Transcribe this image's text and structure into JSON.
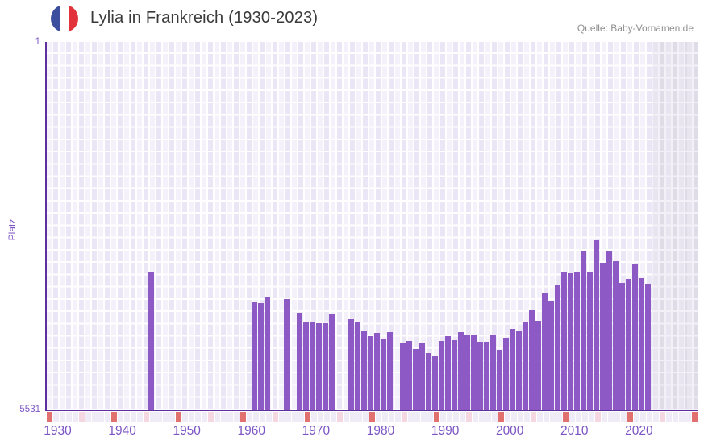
{
  "header": {
    "title": "Lylia in Frankreich (1930-2023)",
    "source": "Quelle: Baby-Vornamen.de",
    "flag_icon": "france-flag-icon"
  },
  "y_axis": {
    "label": "Platz",
    "tick_top": "1",
    "tick_bottom": "5531"
  },
  "x_axis": {
    "ticks": [
      "1930",
      "1940",
      "1950",
      "1960",
      "1970",
      "1980",
      "1990",
      "2000",
      "2010",
      "2020"
    ]
  },
  "chart_data": {
    "type": "bar",
    "title": "Lylia in Frankreich (1930-2023)",
    "xlabel": "",
    "ylabel": "Platz",
    "y_axis_inverted": true,
    "ylim": [
      1,
      5531
    ],
    "xlim": [
      1928,
      2029
    ],
    "legend": "none",
    "grid": true,
    "note": "Rang (Platz) pro Jahr; niedriger Rang = hoeherer Balken; Jahre ohne Balken ohne Platzierung; Bereich nach 2021 grau schattiert",
    "points": [
      {
        "year": 1944,
        "rank": 3450
      },
      {
        "year": 1960,
        "rank": 3900
      },
      {
        "year": 1961,
        "rank": 3920
      },
      {
        "year": 1962,
        "rank": 3825
      },
      {
        "year": 1965,
        "rank": 3860
      },
      {
        "year": 1967,
        "rank": 4065
      },
      {
        "year": 1968,
        "rank": 4200
      },
      {
        "year": 1969,
        "rank": 4210
      },
      {
        "year": 1970,
        "rank": 4225
      },
      {
        "year": 1971,
        "rank": 4225
      },
      {
        "year": 1972,
        "rank": 4080
      },
      {
        "year": 1975,
        "rank": 4165
      },
      {
        "year": 1976,
        "rank": 4210
      },
      {
        "year": 1977,
        "rank": 4330
      },
      {
        "year": 1978,
        "rank": 4420
      },
      {
        "year": 1979,
        "rank": 4370
      },
      {
        "year": 1980,
        "rank": 4455
      },
      {
        "year": 1981,
        "rank": 4355
      },
      {
        "year": 1983,
        "rank": 4515
      },
      {
        "year": 1984,
        "rank": 4490
      },
      {
        "year": 1985,
        "rank": 4610
      },
      {
        "year": 1986,
        "rank": 4515
      },
      {
        "year": 1987,
        "rank": 4670
      },
      {
        "year": 1988,
        "rank": 4710
      },
      {
        "year": 1989,
        "rank": 4490
      },
      {
        "year": 1990,
        "rank": 4420
      },
      {
        "year": 1991,
        "rank": 4480
      },
      {
        "year": 1992,
        "rank": 4355
      },
      {
        "year": 1993,
        "rank": 4405
      },
      {
        "year": 1994,
        "rank": 4405
      },
      {
        "year": 1995,
        "rank": 4505
      },
      {
        "year": 1996,
        "rank": 4505
      },
      {
        "year": 1997,
        "rank": 4405
      },
      {
        "year": 1998,
        "rank": 4625
      },
      {
        "year": 1999,
        "rank": 4440
      },
      {
        "year": 2000,
        "rank": 4310
      },
      {
        "year": 2001,
        "rank": 4345
      },
      {
        "year": 2002,
        "rank": 4200
      },
      {
        "year": 2003,
        "rank": 4030
      },
      {
        "year": 2004,
        "rank": 4190
      },
      {
        "year": 2005,
        "rank": 3765
      },
      {
        "year": 2006,
        "rank": 3885
      },
      {
        "year": 2007,
        "rank": 3645
      },
      {
        "year": 2008,
        "rank": 3450
      },
      {
        "year": 2009,
        "rank": 3475
      },
      {
        "year": 2010,
        "rank": 3460
      },
      {
        "year": 2011,
        "rank": 3135
      },
      {
        "year": 2012,
        "rank": 3450
      },
      {
        "year": 2013,
        "rank": 2980
      },
      {
        "year": 2014,
        "rank": 3315
      },
      {
        "year": 2015,
        "rank": 3135
      },
      {
        "year": 2016,
        "rank": 3290
      },
      {
        "year": 2017,
        "rank": 3620
      },
      {
        "year": 2018,
        "rank": 3560
      },
      {
        "year": 2019,
        "rank": 3340
      },
      {
        "year": 2020,
        "rank": 3545
      },
      {
        "year": 2021,
        "rank": 3630
      }
    ]
  },
  "year_strip": {
    "cells": 101,
    "pattern": "every 5th cell highlighted, alternating red (decades) and pink (half-decades)",
    "red_mod10": 0,
    "pink_mod10": 5
  },
  "colors": {
    "bar": "#8c59c5",
    "axis": "#5c2e9e",
    "tick_label": "#7e57c5",
    "title_text": "#3a3a3a",
    "source_text": "#8f8f8f",
    "grid_light": "#f4f1fb",
    "grid_dark": "#ebe6f5",
    "future_light": "#e8e5f0",
    "future_dark": "#dfdce8",
    "strip_default": "#efecf8",
    "strip_red": "#e0716f",
    "strip_pink": "#f5d7e1",
    "flag_blue": "#3c4e9e",
    "flag_red": "#e2333c"
  }
}
